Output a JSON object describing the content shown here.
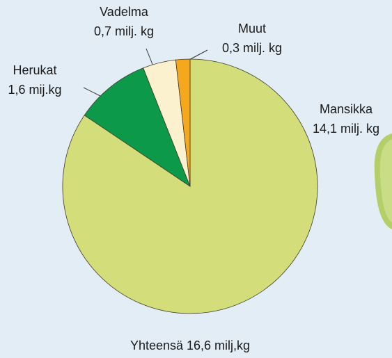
{
  "chart_data": {
    "type": "pie",
    "annotation": "Yhteensä 16,6 milj,kg",
    "categories": [
      "Mansikka",
      "Herukat",
      "Vadelma",
      "Muut"
    ],
    "values": [
      14.1,
      1.6,
      0.7,
      0.3
    ],
    "value_labels": [
      "14,1 milj. kg",
      "1,6 mij.kg",
      "0,7 milj. kg",
      "0,3 milj. kg"
    ],
    "colors": [
      "#d3dd79",
      "#0c9a4a",
      "#fbf1cf",
      "#f6a81c"
    ]
  }
}
